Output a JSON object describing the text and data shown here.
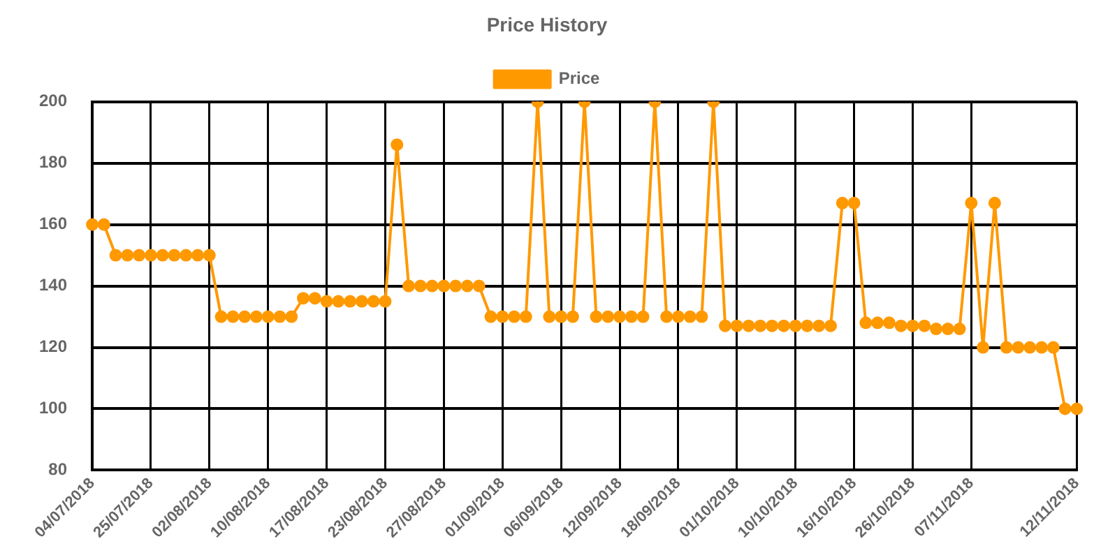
{
  "chart_data": {
    "type": "line",
    "title": "Price History",
    "categories": [
      "04/07/2018",
      null,
      null,
      null,
      null,
      "25/07/2018",
      null,
      null,
      null,
      null,
      "02/08/2018",
      null,
      null,
      null,
      null,
      "10/08/2018",
      null,
      null,
      null,
      null,
      "17/08/2018",
      null,
      null,
      null,
      null,
      "23/08/2018",
      null,
      null,
      null,
      null,
      "27/08/2018",
      null,
      null,
      null,
      null,
      "01/09/2018",
      null,
      null,
      null,
      null,
      "06/09/2018",
      null,
      null,
      null,
      null,
      "12/09/2018",
      null,
      null,
      null,
      null,
      "18/09/2018",
      null,
      null,
      null,
      null,
      "01/10/2018",
      null,
      null,
      null,
      null,
      "10/10/2018",
      null,
      null,
      null,
      null,
      "16/10/2018",
      null,
      null,
      null,
      null,
      "26/10/2018",
      null,
      null,
      null,
      null,
      "07/11/2018",
      null,
      null,
      null,
      null,
      null,
      null,
      null,
      null,
      "12/11/2018"
    ],
    "series": [
      {
        "name": "Price",
        "color": "#ff9900",
        "values": [
          160,
          160,
          150,
          150,
          150,
          150,
          150,
          150,
          150,
          150,
          150,
          130,
          130,
          130,
          130,
          130,
          130,
          130,
          136,
          136,
          135,
          135,
          135,
          135,
          135,
          135,
          186,
          140,
          140,
          140,
          140,
          140,
          140,
          140,
          130,
          130,
          130,
          130,
          200,
          130,
          130,
          130,
          200,
          130,
          130,
          130,
          130,
          130,
          200,
          130,
          130,
          130,
          130,
          200,
          127,
          127,
          127,
          127,
          127,
          127,
          127,
          127,
          127,
          127,
          167,
          167,
          128,
          128,
          128,
          127,
          127,
          127,
          126,
          126,
          126,
          167,
          120,
          167,
          120,
          120,
          120,
          120,
          120,
          100,
          100
        ]
      }
    ],
    "ylim": [
      80,
      200
    ],
    "yticks": [
      80,
      100,
      120,
      140,
      160,
      180,
      200
    ],
    "grid": true,
    "legend": "top",
    "marker": "circle",
    "line_style": "solid"
  }
}
